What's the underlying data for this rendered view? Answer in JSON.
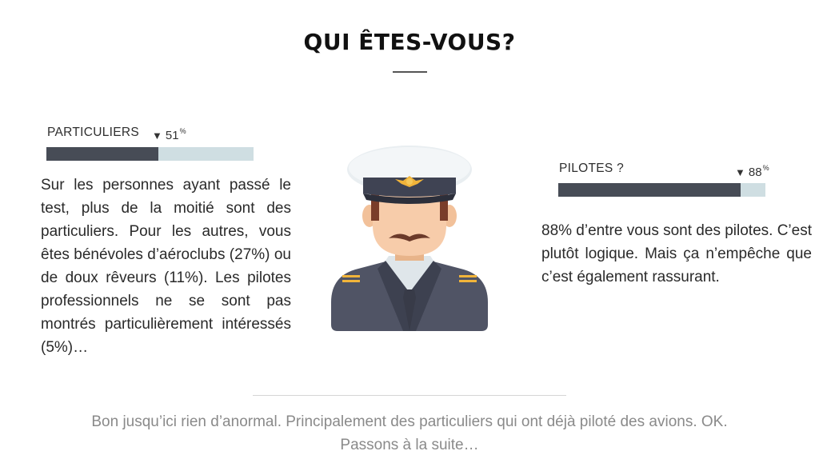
{
  "header": {
    "title": "QUI ÊTES-VOUS?"
  },
  "left_stat": {
    "label": "PARTICULIERS",
    "value": "51",
    "unit": "%",
    "fraction": 0.51,
    "description": "Sur les personnes ayant passé le test, plus de la moitié sont des particuliers. Pour les autres, vous êtes bénévoles d’aéroclubs (27%) ou de doux rêveurs (11%). Les pilotes professionnels ne se sont pas montrés particulièrement intéressés (5%)…"
  },
  "right_stat": {
    "label": "PILOTES ?",
    "value": "88",
    "unit": "%",
    "fraction": 0.88,
    "description": "88% d’entre vous sont des pilotes. C’est plutôt logique. Mais ça n’empêche que c’est également rassurant."
  },
  "illustration": {
    "icon": "pilot-avatar-icon"
  },
  "footer": {
    "line1": "Bon jusqu’ici rien d’anormal. Principalement des particuliers qui ont déjà piloté des avions. OK.",
    "line2": "Passons à la suite…"
  },
  "colors": {
    "bar_fill": "#474c56",
    "bar_track": "#cfdee2",
    "footer_text": "#8a8a8a"
  }
}
